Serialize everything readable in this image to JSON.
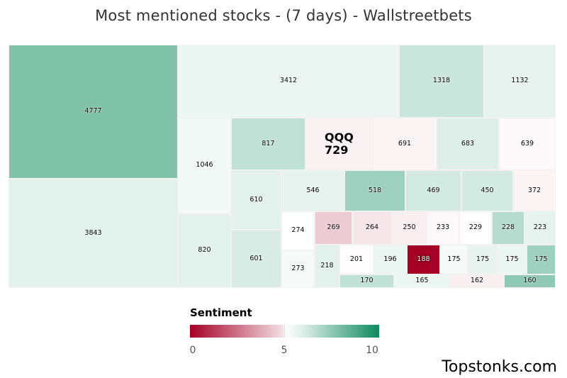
{
  "chart_data": {
    "type": "treemap",
    "title": "Most mentioned stocks - (7 days) - Wallstreetbets",
    "highlight": {
      "ticker": "QQQ",
      "value": 729
    },
    "cells": [
      {
        "value": 4777,
        "sentiment": 7.6
      },
      {
        "value": 3843,
        "sentiment": 5.6
      },
      {
        "value": 3412,
        "sentiment": 5.4
      },
      {
        "value": 1318,
        "sentiment": 6.1
      },
      {
        "value": 1132,
        "sentiment": 5.5
      },
      {
        "value": 1046,
        "sentiment": 5.25
      },
      {
        "value": 820,
        "sentiment": 5.6
      },
      {
        "value": 817,
        "sentiment": 6.3
      },
      {
        "value": 729,
        "sentiment": 4.5,
        "ticker": "QQQ"
      },
      {
        "value": 691,
        "sentiment": 4.6
      },
      {
        "value": 683,
        "sentiment": 5.7
      },
      {
        "value": 639,
        "sentiment": 4.8
      },
      {
        "value": 610,
        "sentiment": 5.6
      },
      {
        "value": 601,
        "sentiment": 5.8
      },
      {
        "value": 546,
        "sentiment": 5.5
      },
      {
        "value": 518,
        "sentiment": 7.0
      },
      {
        "value": 469,
        "sentiment": 5.9
      },
      {
        "value": 450,
        "sentiment": 5.9
      },
      {
        "value": 372,
        "sentiment": 4.6
      },
      {
        "value": 274,
        "sentiment": 5.0
      },
      {
        "value": 273,
        "sentiment": 5.2
      },
      {
        "value": 269,
        "sentiment": 3.3
      },
      {
        "value": 264,
        "sentiment": 4.1
      },
      {
        "value": 250,
        "sentiment": 4.4
      },
      {
        "value": 233,
        "sentiment": 4.8
      },
      {
        "value": 229,
        "sentiment": 5.0
      },
      {
        "value": 228,
        "sentiment": 6.5
      },
      {
        "value": 223,
        "sentiment": 5.5
      },
      {
        "value": 218,
        "sentiment": 5.6
      },
      {
        "value": 201,
        "sentiment": 4.9
      },
      {
        "value": 196,
        "sentiment": 5.4
      },
      {
        "value": 188,
        "sentiment": 0.0
      },
      {
        "value": 175,
        "sentiment": 5.2
      },
      {
        "value": 175,
        "sentiment": 5.5
      },
      {
        "value": 175,
        "sentiment": 5.4
      },
      {
        "value": 175,
        "sentiment": 7.0
      },
      {
        "value": 170,
        "sentiment": 6.3
      },
      {
        "value": 165,
        "sentiment": 5.4
      },
      {
        "value": 162,
        "sentiment": 4.4
      },
      {
        "value": 160,
        "sentiment": 7.3
      }
    ],
    "legend": {
      "title": "Sentiment",
      "min_label": "0",
      "mid_label": "5",
      "max_label": "10",
      "min_color": "#a50026",
      "mid_color": "#ffffff",
      "max_color": "#0c8a5e"
    }
  },
  "brand": "Topstonks.com"
}
